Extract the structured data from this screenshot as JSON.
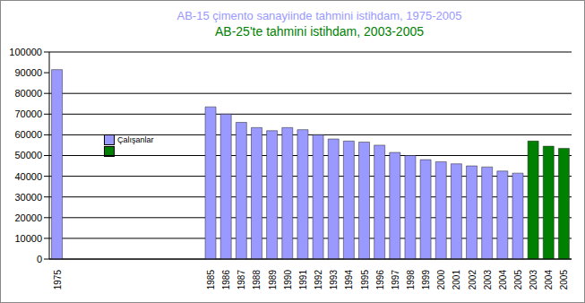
{
  "chart_data": {
    "type": "bar",
    "title": "AB-15 çimento sanayiinde tahmini istihdam, 1975-2005",
    "subtitle": "AB-25'te tahmini istihdam, 2003-2005",
    "categories": [
      "1975",
      null,
      null,
      null,
      null,
      null,
      null,
      null,
      null,
      null,
      "1985",
      "1986",
      "1987",
      "1988",
      "1989",
      "1990",
      "1991",
      "1992",
      "1993",
      "1994",
      "1995",
      "1996",
      "1997",
      "1998",
      "1999",
      "2000",
      "2001",
      "2002",
      "2003",
      "2004",
      "2005",
      "2003",
      "2004",
      "2005"
    ],
    "series": [
      {
        "name": "Çalışanlar",
        "color": "#9999ff",
        "values": [
          91500,
          null,
          null,
          null,
          null,
          null,
          null,
          null,
          null,
          null,
          73500,
          70000,
          66000,
          63500,
          62000,
          63500,
          62500,
          60000,
          58000,
          57000,
          56500,
          55000,
          51500,
          50000,
          48000,
          47000,
          46000,
          45000,
          44500,
          42500,
          41500,
          null,
          null,
          null
        ]
      },
      {
        "color": "#008000",
        "values": [
          null,
          null,
          null,
          null,
          null,
          null,
          null,
          null,
          null,
          null,
          null,
          null,
          null,
          null,
          null,
          null,
          null,
          null,
          null,
          null,
          null,
          null,
          null,
          null,
          null,
          null,
          null,
          null,
          null,
          null,
          null,
          57000,
          54500,
          53500
        ]
      }
    ],
    "ylim": [
      0,
      100000
    ],
    "yticks": [
      0,
      10000,
      20000,
      30000,
      40000,
      50000,
      60000,
      70000,
      80000,
      90000,
      100000
    ],
    "grid": true
  }
}
